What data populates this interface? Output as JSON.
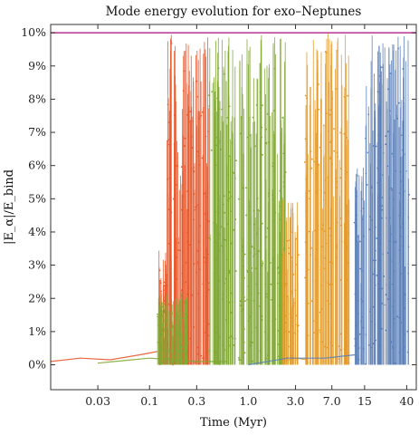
{
  "chart_data": {
    "type": "scatter",
    "title": "Mode energy evolution for exo–Neptunes",
    "xlabel": "Time (Myr)",
    "ylabel": "|E_α|/E_bind",
    "x_scale": "log",
    "xlim": [
      0.01,
      50
    ],
    "ylim": [
      -0.0075,
      0.1025
    ],
    "x_ticks": [
      0.03,
      0.1,
      0.3,
      1.0,
      3.0,
      7.0,
      15,
      40
    ],
    "x_tick_labels": [
      "0.03",
      "0.1",
      "0.3",
      "1.0",
      "3.0",
      "7.0",
      "15",
      "40"
    ],
    "y_ticks": [
      0,
      0.01,
      0.02,
      0.03,
      0.04,
      0.05,
      0.06,
      0.07,
      0.08,
      0.09,
      0.1
    ],
    "y_tick_labels": [
      "0%",
      "1%",
      "2%",
      "3%",
      "4%",
      "5%",
      "6%",
      "7%",
      "8%",
      "9%",
      "10%"
    ],
    "threshold": {
      "y": 0.1,
      "color": "#c0409a"
    },
    "series": [
      {
        "color": "#e8572a",
        "baseline": {
          "x": [
            0.01,
            0.02,
            0.04,
            0.08,
            0.12
          ],
          "y": [
            0.001,
            0.002,
            0.0015,
            0.003,
            0.004
          ]
        },
        "bursts": [
          {
            "x_range": [
              0.12,
              0.15
            ],
            "y_max": 0.036
          },
          {
            "x_range": [
              0.15,
              0.2
            ],
            "y_max": 0.1
          },
          {
            "x_range": [
              0.2,
              0.28
            ],
            "y_max": 0.1
          },
          {
            "x_range": [
              0.28,
              0.4
            ],
            "y_max": 0.1
          }
        ]
      },
      {
        "color": "#7fa832",
        "baseline": {
          "x": [
            0.03,
            0.1,
            0.3,
            0.6
          ],
          "y": [
            0.0005,
            0.002,
            0.001,
            0.001
          ]
        },
        "bursts": [
          {
            "x_range": [
              0.12,
              0.25
            ],
            "y_max": 0.022
          },
          {
            "x_range": [
              0.4,
              0.5
            ],
            "y_max": 0.1
          },
          {
            "x_range": [
              0.5,
              0.75
            ],
            "y_max": 0.1
          },
          {
            "x_range": [
              0.8,
              1.5
            ],
            "y_max": 0.1
          },
          {
            "x_range": [
              1.5,
              2.4
            ],
            "y_max": 0.1
          }
        ]
      },
      {
        "color": "#e39a2a",
        "baseline": {
          "x": [
            2.2,
            3.0,
            4.0
          ],
          "y": [
            0.001,
            0.002,
            0.0015
          ]
        },
        "bursts": [
          {
            "x_range": [
              2.2,
              3.2
            ],
            "y_max": 0.05
          },
          {
            "x_range": [
              3.8,
              5.2
            ],
            "y_max": 0.1
          },
          {
            "x_range": [
              5.3,
              7.5
            ],
            "y_max": 0.1
          },
          {
            "x_range": [
              7.5,
              10.5
            ],
            "y_max": 0.1
          }
        ]
      },
      {
        "color": "#5b7fb8",
        "baseline": {
          "x": [
            1.0,
            2.5,
            6.0,
            12.0
          ],
          "y": [
            0.0,
            0.002,
            0.002,
            0.003
          ]
        },
        "bursts": [
          {
            "x_range": [
              12,
              15
            ],
            "y_max": 0.06
          },
          {
            "x_range": [
              15,
              22
            ],
            "y_max": 0.1
          },
          {
            "x_range": [
              22,
              30
            ],
            "y_max": 0.1
          },
          {
            "x_range": [
              30,
              42
            ],
            "y_max": 0.1
          }
        ]
      }
    ]
  }
}
